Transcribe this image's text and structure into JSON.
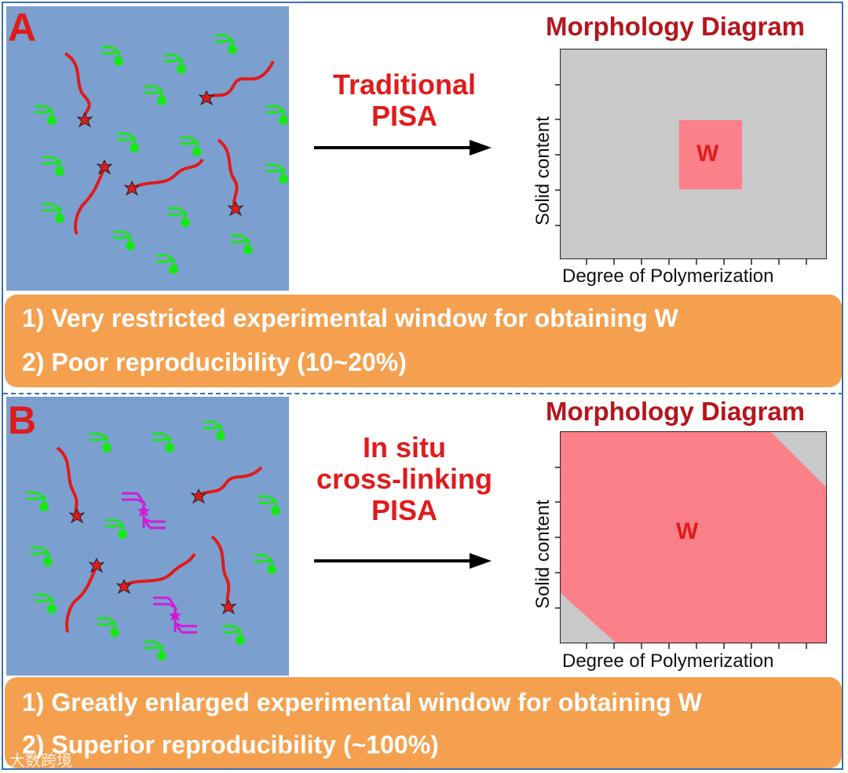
{
  "panel_a": {
    "letter": "A",
    "method_line1": "Traditional",
    "method_line2": "PISA",
    "diagram_title": "Morphology Diagram",
    "xlabel": "Degree of Polymerization",
    "ylabel": "Solid content",
    "region_label": "W",
    "notes": [
      "1) Very restricted experimental window for obtaining W",
      "2) Poor reproducibility (10~20%)"
    ]
  },
  "panel_b": {
    "letter": "B",
    "method_line1": "In situ",
    "method_line2": "cross-linking",
    "method_line3": "PISA",
    "diagram_title": "Morphology Diagram",
    "xlabel": "Degree of Polymerization",
    "ylabel": "Solid content",
    "region_label": "W",
    "notes": [
      "1) Greatly enlarged experimental window for obtaining W",
      "2) Superior reproducibility (~100%)"
    ]
  },
  "watermark": "大数跨境",
  "colors": {
    "panel_background": "#7ba0cf",
    "polymer_chain": "#e01b1b",
    "monomer": "#19e619",
    "crosslinker": "#d21bd9",
    "w_region": "#fb8089",
    "other_region": "#c9c9c9",
    "notes_box": "#f5a04e",
    "title": "#b3161d",
    "border": "#3a6fb5"
  }
}
